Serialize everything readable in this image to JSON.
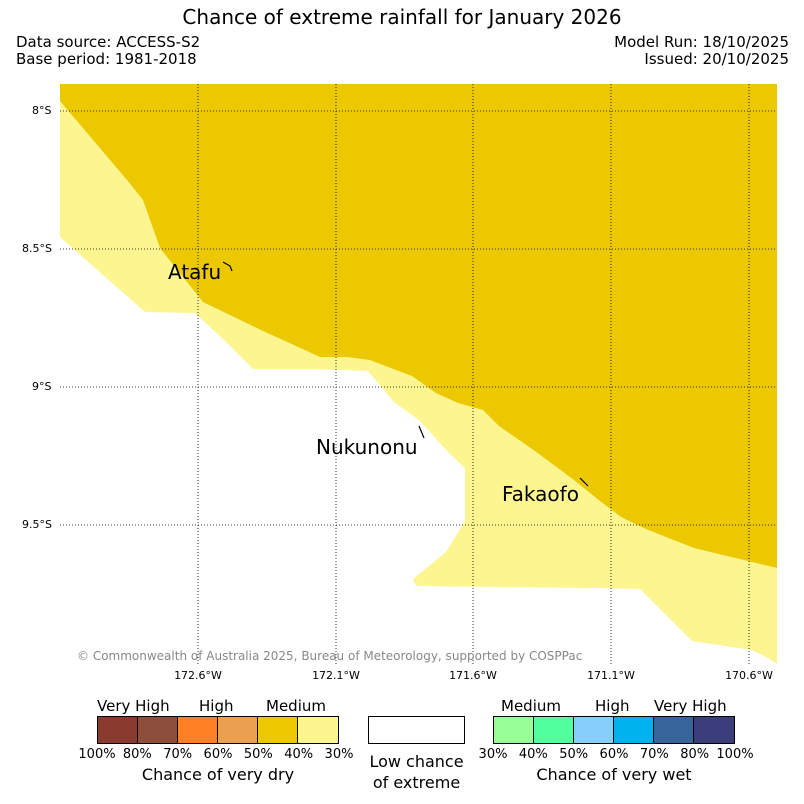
{
  "header": {
    "title": "Chance of extreme rainfall for January 2026",
    "data_source": "Data source: ACCESS-S2",
    "base_period": "Base period: 1981-2018",
    "model_run": "Model Run: 18/10/2025",
    "issued": "Issued: 20/10/2025"
  },
  "map": {
    "lat_labels": [
      "8°S",
      "8.5°S",
      "9°S",
      "9.5°S"
    ],
    "lon_labels": [
      "172.6°W",
      "172.1°W",
      "171.6°W",
      "171.1°W",
      "170.6°W"
    ],
    "places": [
      "Atafu",
      "Nukunonu",
      "Fakaofo"
    ],
    "copyright": "© Commonwealth of Australia 2025, Bureau of Meteorology, supported by COSPPac",
    "colors": {
      "medium_dry_40_50": "#ebc800",
      "medium_dry_30_40": "#fdf58f",
      "grid": "#000000"
    }
  },
  "legend": {
    "dry": {
      "headings": [
        "Very High",
        "High",
        "Medium"
      ],
      "ticks": [
        "100%",
        "80%",
        "70%",
        "60%",
        "50%",
        "40%",
        "30%"
      ],
      "colors": [
        "#8b3a30",
        "#8e4e3c",
        "#ff7f24",
        "#eaa050",
        "#ebc800",
        "#fdf58f"
      ],
      "title": "Chance of very dry"
    },
    "neutral": {
      "line1": "Low chance",
      "line2": "of extreme",
      "color": "#ffffff"
    },
    "wet": {
      "headings": [
        "Medium",
        "High",
        "Very High"
      ],
      "ticks": [
        "30%",
        "40%",
        "50%",
        "60%",
        "70%",
        "80%",
        "100%"
      ],
      "colors": [
        "#98ff98",
        "#52ff9f",
        "#87cefa",
        "#00b2ee",
        "#36649b",
        "#3b3d7a"
      ],
      "title": "Chance of very wet"
    }
  }
}
